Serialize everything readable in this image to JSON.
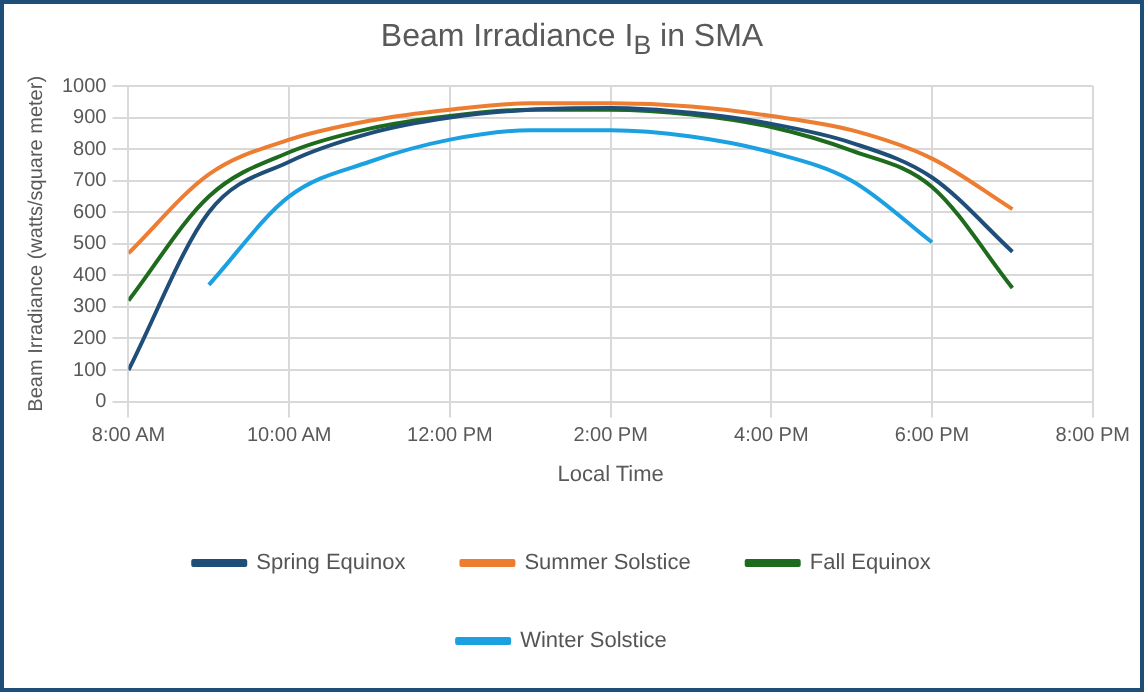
{
  "chart_data": {
    "type": "line",
    "title": "Beam Irradiance I$_{B}$ in SMA",
    "xlabel": "Local Time",
    "ylabel": "Beam Irradiance (watts/square meter)",
    "x": [
      8,
      9,
      10,
      11,
      12,
      13,
      14,
      15,
      16,
      17,
      18,
      19
    ],
    "series": [
      {
        "name": "Spring Equinox",
        "color": "#1f4e79",
        "values": [
          100,
          600,
          760,
          850,
          900,
          925,
          930,
          915,
          880,
          820,
          710,
          475
        ]
      },
      {
        "name": "Summer Solstice",
        "color": "#ed7d31",
        "values": [
          470,
          720,
          830,
          890,
          925,
          945,
          945,
          935,
          905,
          860,
          770,
          610
        ]
      },
      {
        "name": "Fall Equinox",
        "color": "#1e6b1e",
        "values": [
          320,
          650,
          790,
          865,
          905,
          925,
          925,
          910,
          870,
          795,
          680,
          360
        ]
      },
      {
        "name": "Winter Solstice",
        "color": "#1ba1e2",
        "values": [
          null,
          370,
          650,
          760,
          830,
          860,
          860,
          840,
          790,
          700,
          505,
          null
        ]
      }
    ],
    "xlim": [
      8,
      20
    ],
    "xticks": [
      {
        "value": 8,
        "label": "8:00 AM"
      },
      {
        "value": 10,
        "label": "10:00 AM"
      },
      {
        "value": 12,
        "label": "12:00 PM"
      },
      {
        "value": 14,
        "label": "2:00 PM"
      },
      {
        "value": 16,
        "label": "4:00 PM"
      },
      {
        "value": 18,
        "label": "6:00 PM"
      },
      {
        "value": 20,
        "label": "8:00 PM"
      }
    ],
    "ylim": [
      0,
      1000
    ],
    "yticks": [
      0,
      100,
      200,
      300,
      400,
      500,
      600,
      700,
      800,
      900,
      1000
    ],
    "grid": true,
    "legend": "bottom",
    "marker": "none",
    "line_style": "solid"
  }
}
